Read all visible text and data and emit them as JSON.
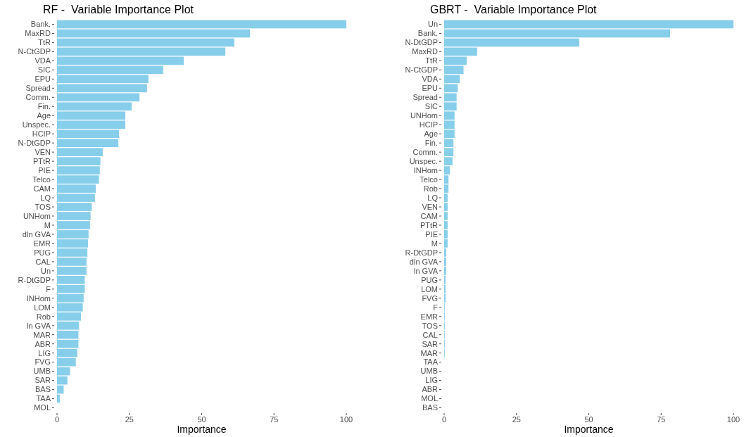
{
  "chart_data": [
    {
      "type": "bar",
      "orientation": "horizontal",
      "title": "RF -  Variable Importance Plot",
      "xlabel": "Importance",
      "categories": [
        "Bank.",
        "MaxRD",
        "TtR",
        "N-CtGDP",
        "VDA",
        "SIC",
        "EPU",
        "Spread",
        "Comm.",
        "Fin.",
        "Age",
        "Unspec.",
        "HCIP",
        "N-DtGDP",
        "VEN",
        "PTtR",
        "PIE",
        "Telco",
        "CAM",
        "LQ",
        "TOS",
        "UNHom",
        "M",
        "dln GVA",
        "EMR",
        "PUG",
        "CAL",
        "Un",
        "R-DtGDP",
        "F",
        "INHom",
        "LOM",
        "Rob",
        "ln GVA",
        "MAR",
        "ABR",
        "LIG",
        "FVG",
        "UMB",
        "SAR",
        "BAS",
        "TAA",
        "MOL"
      ],
      "values": [
        100,
        66.7,
        61.3,
        58.2,
        43.8,
        36.7,
        31.6,
        31.1,
        28.5,
        25.8,
        23.6,
        23.6,
        21.4,
        21.2,
        15.8,
        15.0,
        14.8,
        14.5,
        13.4,
        13.1,
        12.0,
        11.6,
        11.4,
        10.9,
        10.7,
        10.5,
        10.2,
        10.2,
        9.6,
        9.6,
        9.2,
        8.9,
        8.3,
        7.6,
        7.4,
        7.4,
        7.0,
        6.5,
        4.5,
        3.6,
        2.3,
        1.0,
        0
      ],
      "color": "#87ceeb",
      "xlim": [
        0,
        100
      ],
      "xticks": [
        0,
        25,
        50,
        75,
        100
      ],
      "grid": false
    },
    {
      "type": "bar",
      "orientation": "horizontal",
      "title": "GBRT -  Variable Importance Plot",
      "xlabel": "Importance",
      "categories": [
        "Un",
        "Bank.",
        "N-DtGDP",
        "MaxRD",
        "TtR",
        "N-CtGDP",
        "VDA",
        "EPU",
        "Spread",
        "SIC",
        "UNHom",
        "HCIP",
        "Age",
        "Fin.",
        "Comm.",
        "Unspec.",
        "INHom",
        "Telco",
        "Rob",
        "LQ",
        "VEN",
        "CAM",
        "PTtR",
        "PIE",
        "M",
        "R-DtGDP",
        "dln GVA",
        "ln GVA",
        "PUG",
        "LOM",
        "FVG",
        "F",
        "EMR",
        "TOS",
        "CAL",
        "SAR",
        "MAR",
        "TAA",
        "UMB",
        "LIG",
        "ABR",
        "MOL",
        "BAS"
      ],
      "values": [
        100,
        78.1,
        46.7,
        11.4,
        7.8,
        6.7,
        5.4,
        4.7,
        4.3,
        4.3,
        3.6,
        3.6,
        3.6,
        3.2,
        3.2,
        2.9,
        2.0,
        1.5,
        1.5,
        1.2,
        1.2,
        1.2,
        1.2,
        1.2,
        1.2,
        0.7,
        0.7,
        0.7,
        0.5,
        0.5,
        0.5,
        0.2,
        0.2,
        0.2,
        0.2,
        0.2,
        0.2,
        0,
        0,
        0,
        0,
        0,
        0
      ],
      "color": "#87ceeb",
      "xlim": [
        0,
        100
      ],
      "xticks": [
        0,
        25,
        50,
        75,
        100
      ],
      "grid": false
    }
  ]
}
